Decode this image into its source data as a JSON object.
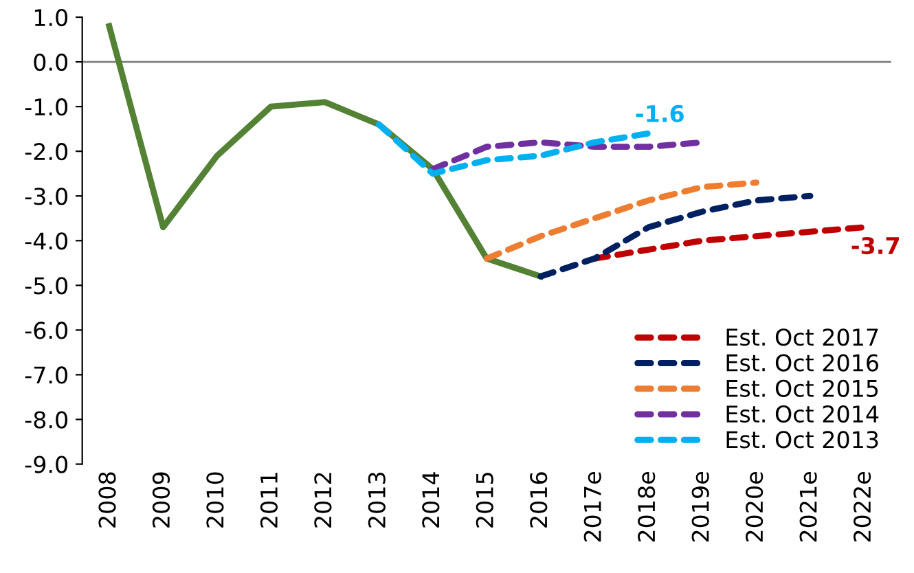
{
  "chart_data": {
    "type": "line",
    "categories": [
      "2008",
      "2009",
      "2010",
      "2011",
      "2012",
      "2013",
      "2014",
      "2015",
      "2016",
      "2017e",
      "2018e",
      "2019e",
      "2020e",
      "2021e",
      "2022e"
    ],
    "series": [
      {
        "color": "#548235",
        "line_style": "solid",
        "values": [
          0.8,
          -3.7,
          -2.1,
          -1.0,
          -0.9,
          -1.4,
          -2.4,
          -4.4,
          -4.8,
          null,
          null,
          null,
          null,
          null,
          null
        ]
      },
      {
        "name": "Est. Oct 2017",
        "color": "#c00000",
        "line_style": "dashed",
        "values": [
          null,
          null,
          null,
          null,
          null,
          null,
          null,
          null,
          null,
          -4.4,
          -4.2,
          -4.0,
          -3.9,
          -3.8,
          -3.7
        ],
        "value_labels": [
          null,
          null,
          null,
          null,
          null,
          null,
          null,
          null,
          null,
          null,
          null,
          null,
          null,
          null,
          "-3.7"
        ]
      },
      {
        "name": "Est. Oct 2016",
        "color": "#002060",
        "line_style": "dashed",
        "values": [
          null,
          null,
          null,
          null,
          null,
          null,
          null,
          null,
          -4.8,
          -4.4,
          -3.7,
          -3.35,
          -3.1,
          -3.0,
          null
        ]
      },
      {
        "name": "Est. Oct 2015",
        "color": "#ed7d31",
        "line_style": "dashed",
        "values": [
          null,
          null,
          null,
          null,
          null,
          null,
          null,
          -4.4,
          -3.9,
          -3.5,
          -3.1,
          -2.8,
          -2.7,
          null,
          null
        ]
      },
      {
        "name": "Est. Oct 2014",
        "color": "#7030a0",
        "line_style": "dashed",
        "values": [
          null,
          null,
          null,
          null,
          null,
          null,
          -2.4,
          -1.9,
          -1.8,
          -1.9,
          -1.9,
          -1.8,
          null,
          null,
          null
        ]
      },
      {
        "name": "Est. Oct 2013",
        "color": "#00b0f0",
        "line_style": "dashed",
        "values": [
          null,
          null,
          null,
          null,
          null,
          -1.4,
          -2.5,
          -2.2,
          -2.1,
          -1.8,
          -1.6,
          null,
          null,
          null,
          null
        ],
        "value_labels": [
          null,
          null,
          null,
          null,
          null,
          null,
          null,
          null,
          null,
          null,
          "-1.6",
          null,
          null,
          null,
          null
        ]
      }
    ],
    "ylim": [
      -9.0,
      1.0
    ],
    "yticks": [
      {
        "value": 1,
        "label": "1.0"
      },
      {
        "value": 0,
        "label": "0.0"
      },
      {
        "value": -1,
        "label": "-1.0"
      },
      {
        "value": -2,
        "label": "-2.0"
      },
      {
        "value": -3,
        "label": "-3.0"
      },
      {
        "value": -4,
        "label": "-4.0"
      },
      {
        "value": -5,
        "label": "-5.0"
      },
      {
        "value": -6,
        "label": "-6.0"
      },
      {
        "value": -7,
        "label": "-7.0"
      },
      {
        "value": -8,
        "label": "-8.0"
      },
      {
        "value": -9,
        "label": "-9.0"
      }
    ],
    "ref_lines": [
      {
        "axis": "y",
        "value": 0,
        "color": "#808080"
      }
    ],
    "legend": "bottom right",
    "grid": false
  }
}
